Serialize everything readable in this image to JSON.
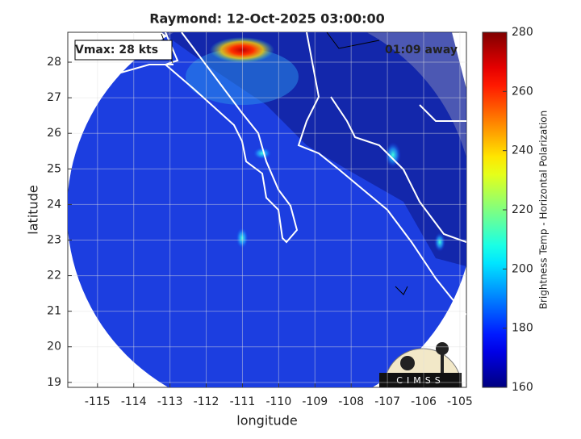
{
  "chart_data": {
    "type": "map",
    "title": "Raymond: 12-Oct-2025 03:00:00",
    "xlabel": "longitude",
    "ylabel": "latitude",
    "annotations": [
      "Vmax: 28 kts",
      "01:09 away"
    ],
    "logo_text": "CIMSS",
    "xlim": [
      -115.82,
      -104.82
    ],
    "xticks": [
      -115,
      -114,
      -113,
      -112,
      -111,
      -110,
      -109,
      -108,
      -107,
      -106,
      -105
    ],
    "ylim": [
      18.86,
      28.84
    ],
    "yticks": [
      19,
      20,
      21,
      22,
      23,
      24,
      25,
      26,
      27,
      28
    ],
    "grid": true,
    "colorbar": {
      "label": "Brightness Temp - Horizontal Polarization",
      "colormap": "jet",
      "lim": [
        160,
        280
      ],
      "ticks": [
        160,
        180,
        200,
        220,
        240,
        260,
        280
      ]
    }
  }
}
